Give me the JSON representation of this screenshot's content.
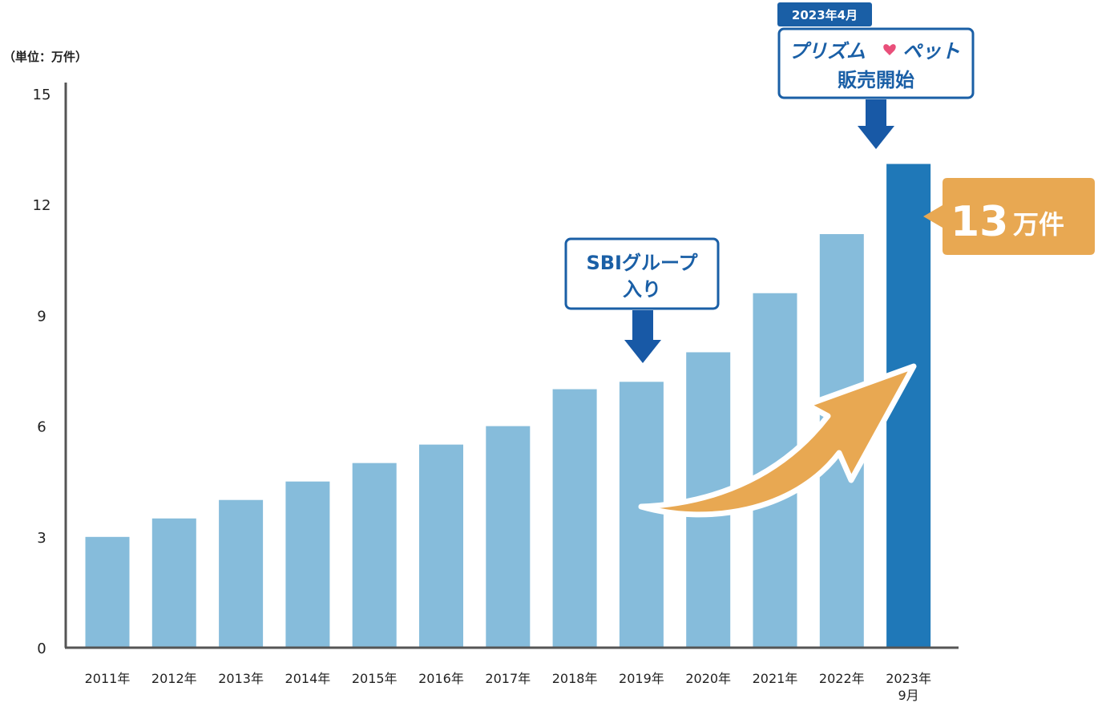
{
  "colors": {
    "bar": "#86bcdb",
    "bar_highlight": "#1f78b8",
    "axis": "#555555",
    "annotation_border": "#1a5fa6",
    "annotation_arrow": "#1859a6",
    "growth_arrow": "#e8a852",
    "callout_bg": "#e8a852",
    "date_tag_bg": "#1a5fa6",
    "heart_icon": "#e94f7a"
  },
  "chart_data": {
    "type": "bar",
    "unit_label": "（単位：万件）",
    "ylim": [
      0,
      15
    ],
    "yticks": [
      "0",
      "3",
      "6",
      "9",
      "12",
      "15"
    ],
    "categories": [
      [
        "2011年"
      ],
      [
        "2012年"
      ],
      [
        "2013年"
      ],
      [
        "2014年"
      ],
      [
        "2015年"
      ],
      [
        "2016年"
      ],
      [
        "2017年"
      ],
      [
        "2018年"
      ],
      [
        "2019年"
      ],
      [
        "2020年"
      ],
      [
        "2021年"
      ],
      [
        "2022年"
      ],
      [
        "2023年",
        "9月"
      ]
    ],
    "values": [
      3.0,
      3.5,
      4.0,
      4.5,
      5.0,
      5.5,
      6.0,
      7.0,
      7.2,
      8.0,
      9.6,
      11.2,
      13.1
    ],
    "highlight_index": 12,
    "grid": false,
    "annotations": {
      "sbi": {
        "lines": [
          "SBIグループ",
          "入り"
        ],
        "index": 8,
        "icon": "arrow-down-icon"
      },
      "prism": {
        "date": "2023年4月",
        "title_part1": "プリズム",
        "title_part2": "ペット",
        "subtitle": "販売開始",
        "index": 12,
        "icon": "arrow-down-icon"
      },
      "callout": {
        "number": "13",
        "unit": "万件",
        "icon": "growth-arrow-icon"
      }
    }
  }
}
